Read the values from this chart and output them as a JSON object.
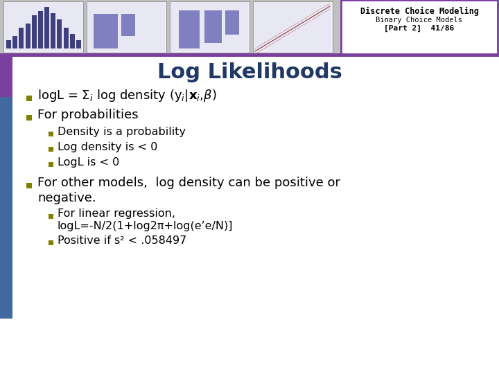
{
  "title": "Log Likelihoods",
  "title_color": "#1F3864",
  "title_fontsize": 22,
  "header_bg": "#FFFFFF",
  "header_border": "#7B3FA0",
  "header_title": "Discrete Choice Modeling",
  "header_subtitle": "Binary Choice Models",
  "header_part": "[Part 2]  41/86",
  "header_title_color": "#000000",
  "header_subtitle_color": "#000000",
  "header_part_color": "#000000",
  "bullet_color": "#808000",
  "sub_bullet_color": "#808000",
  "bg_color": "#FFFFFF",
  "top_strip_color": "#7B3FA0",
  "left_bar_blue": "#4169A0",
  "left_bar_purple": "#7B3FA0",
  "thumb_bg": "#C8C8E8",
  "thumb_border": "#888888",
  "main_fontsize": 13,
  "sub_fontsize": 11.5
}
